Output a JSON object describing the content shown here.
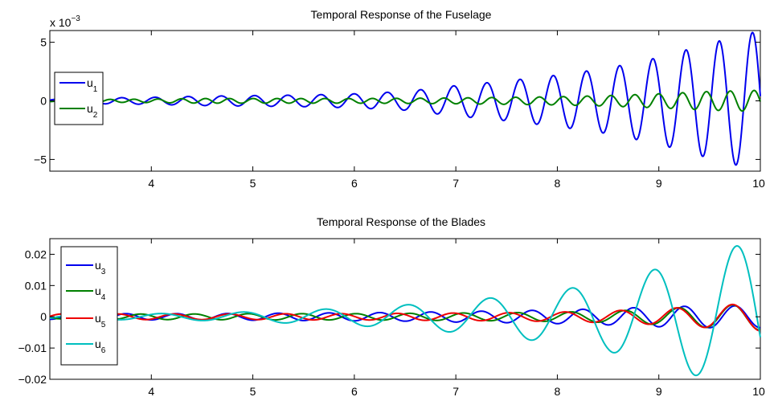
{
  "chart_data": [
    {
      "type": "line",
      "title": "Temporal Response of the Fuselage",
      "xlabel": "",
      "ylabel": "",
      "y_multiplier_label": "x 10",
      "y_multiplier_exponent": "−3",
      "xlim": [
        3,
        10
      ],
      "ylim": [
        -6,
        6
      ],
      "xticks": [
        "4",
        "5",
        "6",
        "7",
        "8",
        "9",
        "10"
      ],
      "yticks": [
        "−5",
        "0",
        "5"
      ],
      "ytick_values": [
        -5,
        0,
        5
      ],
      "legend_position": "left",
      "grid": false,
      "series": [
        {
          "name": "u",
          "subscript": "1",
          "color": "#0000ee",
          "period": 0.327,
          "x": [
            3.0,
            3.5,
            4.0,
            4.5,
            5.0,
            5.5,
            6.0,
            6.5,
            7.0,
            7.5,
            8.0,
            8.5,
            9.0,
            9.5,
            10.0
          ],
          "amplitude": [
            0.2,
            0.25,
            0.3,
            0.4,
            0.45,
            0.5,
            0.6,
            0.8,
            1.3,
            1.7,
            2.2,
            2.8,
            3.7,
            4.9,
            6.0
          ]
        },
        {
          "name": "u",
          "subscript": "2",
          "color": "#008000",
          "period": 0.235,
          "x": [
            3.0,
            3.5,
            4.0,
            4.5,
            5.0,
            5.5,
            6.0,
            6.5,
            7.0,
            7.5,
            8.0,
            8.5,
            9.0,
            9.5,
            10.0
          ],
          "amplitude": [
            0.1,
            0.12,
            0.15,
            0.2,
            0.2,
            0.2,
            0.2,
            0.22,
            0.25,
            0.3,
            0.35,
            0.45,
            0.6,
            0.8,
            0.9
          ]
        }
      ]
    },
    {
      "type": "line",
      "title": "Temporal Response of the Blades",
      "xlabel": "",
      "ylabel": "",
      "xlim": [
        3,
        10
      ],
      "ylim": [
        -0.02,
        0.025
      ],
      "xticks": [
        "4",
        "5",
        "6",
        "7",
        "8",
        "9",
        "10"
      ],
      "yticks": [
        "0.02",
        "0.01",
        "0",
        "−0.01",
        "−0.02"
      ],
      "ytick_values": [
        0.02,
        0.01,
        0,
        -0.01,
        -0.02
      ],
      "legend_position": "left",
      "grid": false,
      "series": [
        {
          "name": "u",
          "subscript": "3",
          "color": "#0000ee",
          "period": 0.5,
          "phase": 2.2,
          "x": [
            3.0,
            3.5,
            4.0,
            4.5,
            5.0,
            5.5,
            6.0,
            6.5,
            7.0,
            7.5,
            8.0,
            8.5,
            9.0,
            9.5,
            10.0
          ],
          "amplitude": [
            0.0008,
            0.001,
            0.001,
            0.001,
            0.0011,
            0.0012,
            0.0013,
            0.0014,
            0.0017,
            0.0019,
            0.0022,
            0.0026,
            0.0032,
            0.0035,
            0.0035
          ]
        },
        {
          "name": "u",
          "subscript": "4",
          "color": "#008000",
          "period": 0.53,
          "phase": 0.8,
          "x": [
            3.0,
            3.5,
            4.0,
            4.5,
            5.0,
            5.5,
            6.0,
            6.5,
            7.0,
            7.5,
            8.0,
            8.5,
            9.0,
            9.5,
            10.0
          ],
          "amplitude": [
            0.0006,
            0.0008,
            0.0009,
            0.0009,
            0.001,
            0.001,
            0.001,
            0.0011,
            0.0012,
            0.0013,
            0.0015,
            0.0018,
            0.0025,
            0.0035,
            0.0042
          ]
        },
        {
          "name": "u",
          "subscript": "5",
          "color": "#ee0000",
          "period": 0.55,
          "phase": 3.6,
          "x": [
            3.0,
            3.5,
            4.0,
            4.5,
            5.0,
            5.5,
            6.0,
            6.5,
            7.0,
            7.5,
            8.0,
            8.5,
            9.0,
            9.5,
            10.0
          ],
          "amplitude": [
            0.0009,
            0.0009,
            0.0009,
            0.0009,
            0.0009,
            0.001,
            0.001,
            0.0011,
            0.0012,
            0.0013,
            0.0015,
            0.0019,
            0.0025,
            0.0035,
            0.0045
          ]
        },
        {
          "name": "u",
          "subscript": "6",
          "color": "#00bfbf",
          "period": 0.81,
          "phase": 1.7,
          "x": [
            3.0,
            3.5,
            4.0,
            4.5,
            5.0,
            5.5,
            6.0,
            6.5,
            7.0,
            7.5,
            8.0,
            8.5,
            9.0,
            9.5,
            10.0
          ],
          "amplitude": [
            0.0008,
            0.0009,
            0.001,
            0.0012,
            0.0016,
            0.0022,
            0.0028,
            0.0038,
            0.005,
            0.0065,
            0.0085,
            0.011,
            0.0155,
            0.02,
            0.025
          ]
        }
      ]
    }
  ]
}
